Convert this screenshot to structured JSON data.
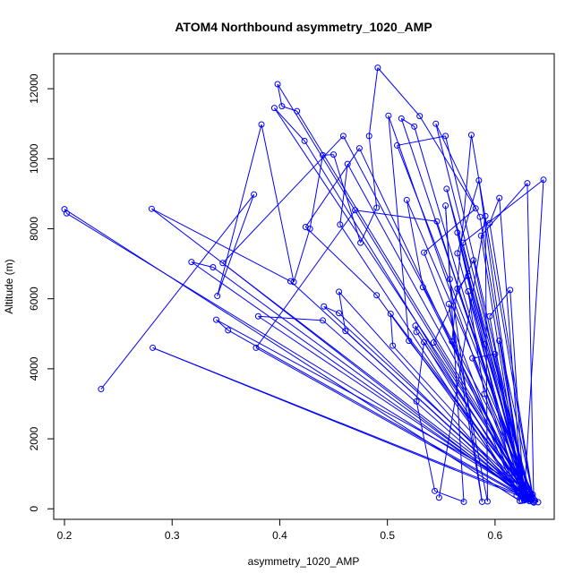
{
  "chart_data": {
    "type": "line",
    "title": "ATOM4 Northbound asymmetry_1020_AMP",
    "xlabel": "asymmetry_1020_AMP",
    "ylabel": "Altitude (m)",
    "xlim": [
      0.19,
      0.655
    ],
    "ylim": [
      -300,
      13000
    ],
    "x_ticks": [
      0.2,
      0.3,
      0.4,
      0.5,
      0.6
    ],
    "x_tick_labels": [
      "0.2",
      "0.3",
      "0.4",
      "0.5",
      "0.6"
    ],
    "y_ticks": [
      0,
      2000,
      4000,
      6000,
      8000,
      10000,
      12000
    ],
    "y_tick_labels": [
      "0",
      "2000",
      "4000",
      "6000",
      "8000",
      "10000",
      "12000"
    ],
    "grid": false,
    "series": [
      {
        "color": "#0000ff",
        "marker": "open-circle",
        "points": [
          [
            0.234,
            3420
          ],
          [
            0.376,
            8980
          ],
          [
            0.342,
            6080
          ],
          [
            0.383,
            10980
          ],
          [
            0.413,
            6480
          ],
          [
            0.428,
            8000
          ],
          [
            0.44,
            10100
          ],
          [
            0.45,
            10120
          ],
          [
            0.475,
            7600
          ],
          [
            0.49,
            8600
          ],
          [
            0.483,
            10650
          ],
          [
            0.491,
            12600
          ],
          [
            0.53,
            11220
          ],
          [
            0.582,
            8580
          ],
          [
            0.534,
            7320
          ],
          [
            0.623,
            225
          ],
          [
            0.2,
            8560
          ],
          [
            0.202,
            8440
          ],
          [
            0.625,
            480
          ],
          [
            0.281,
            8570
          ],
          [
            0.41,
            6500
          ],
          [
            0.63,
            320
          ],
          [
            0.282,
            4600
          ],
          [
            0.635,
            210
          ],
          [
            0.555,
            9140
          ],
          [
            0.625,
            650
          ],
          [
            0.341,
            5400
          ],
          [
            0.352,
            5100
          ],
          [
            0.632,
            280
          ],
          [
            0.338,
            6900
          ],
          [
            0.318,
            7050
          ],
          [
            0.636,
            190
          ],
          [
            0.398,
            12130
          ],
          [
            0.402,
            11500
          ],
          [
            0.416,
            11360
          ],
          [
            0.637,
            240
          ],
          [
            0.395,
            11450
          ],
          [
            0.423,
            10510
          ],
          [
            0.628,
            300
          ],
          [
            0.474,
            10300
          ],
          [
            0.424,
            8050
          ],
          [
            0.49,
            6100
          ],
          [
            0.626,
            350
          ],
          [
            0.347,
            7020
          ],
          [
            0.459,
            10650
          ],
          [
            0.64,
            190
          ],
          [
            0.441,
            5780
          ],
          [
            0.455,
            5590
          ],
          [
            0.627,
            420
          ],
          [
            0.38,
            5500
          ],
          [
            0.44,
            5380
          ],
          [
            0.621,
            500
          ],
          [
            0.455,
            6200
          ],
          [
            0.461,
            5080
          ],
          [
            0.631,
            260
          ],
          [
            0.378,
            4600
          ],
          [
            0.47,
            8530
          ],
          [
            0.546,
            8210
          ],
          [
            0.629,
            280
          ],
          [
            0.586,
            8340
          ],
          [
            0.545,
            11000
          ],
          [
            0.63,
            550
          ],
          [
            0.554,
            10650
          ],
          [
            0.509,
            10380
          ],
          [
            0.635,
            330
          ],
          [
            0.578,
            10680
          ],
          [
            0.56,
            4780
          ],
          [
            0.62,
            380
          ],
          [
            0.565,
            7890
          ],
          [
            0.59,
            4700
          ],
          [
            0.632,
            220
          ],
          [
            0.575,
            6210
          ],
          [
            0.59,
            3280
          ],
          [
            0.625,
            420
          ],
          [
            0.595,
            5500
          ],
          [
            0.614,
            6250
          ],
          [
            0.627,
            260
          ],
          [
            0.58,
            7100
          ],
          [
            0.543,
            4750
          ],
          [
            0.634,
            250
          ],
          [
            0.575,
            6650
          ],
          [
            0.565,
            6290
          ],
          [
            0.63,
            480
          ],
          [
            0.579,
            4300
          ],
          [
            0.6,
            4420
          ],
          [
            0.625,
            520
          ],
          [
            0.604,
            8880
          ],
          [
            0.595,
            8160
          ],
          [
            0.636,
            180
          ],
          [
            0.63,
            9300
          ],
          [
            0.587,
            7800
          ],
          [
            0.625,
            390
          ],
          [
            0.565,
            7300
          ],
          [
            0.585,
            9380
          ],
          [
            0.627,
            300
          ],
          [
            0.645,
            9400
          ],
          [
            0.57,
            7600
          ],
          [
            0.628,
            280
          ],
          [
            0.604,
            4800
          ],
          [
            0.635,
            410
          ],
          [
            0.518,
            8820
          ],
          [
            0.533,
            6330
          ],
          [
            0.631,
            300
          ],
          [
            0.526,
            5230
          ],
          [
            0.527,
            5050
          ],
          [
            0.63,
            420
          ],
          [
            0.513,
            11150
          ],
          [
            0.525,
            10920
          ],
          [
            0.627,
            240
          ],
          [
            0.501,
            11230
          ],
          [
            0.52,
            4800
          ],
          [
            0.634,
            280
          ],
          [
            0.503,
            5570
          ],
          [
            0.505,
            4660
          ],
          [
            0.633,
            330
          ],
          [
            0.463,
            9850
          ],
          [
            0.456,
            8120
          ],
          [
            0.625,
            230
          ],
          [
            0.534,
            4760
          ],
          [
            0.527,
            3070
          ],
          [
            0.544,
            510
          ],
          [
            0.571,
            200
          ],
          [
            0.554,
            8660
          ],
          [
            0.558,
            6560
          ],
          [
            0.588,
            200
          ],
          [
            0.557,
            5850
          ],
          [
            0.593,
            210
          ],
          [
            0.591,
            8360
          ],
          [
            0.548,
            320
          ]
        ]
      }
    ]
  }
}
